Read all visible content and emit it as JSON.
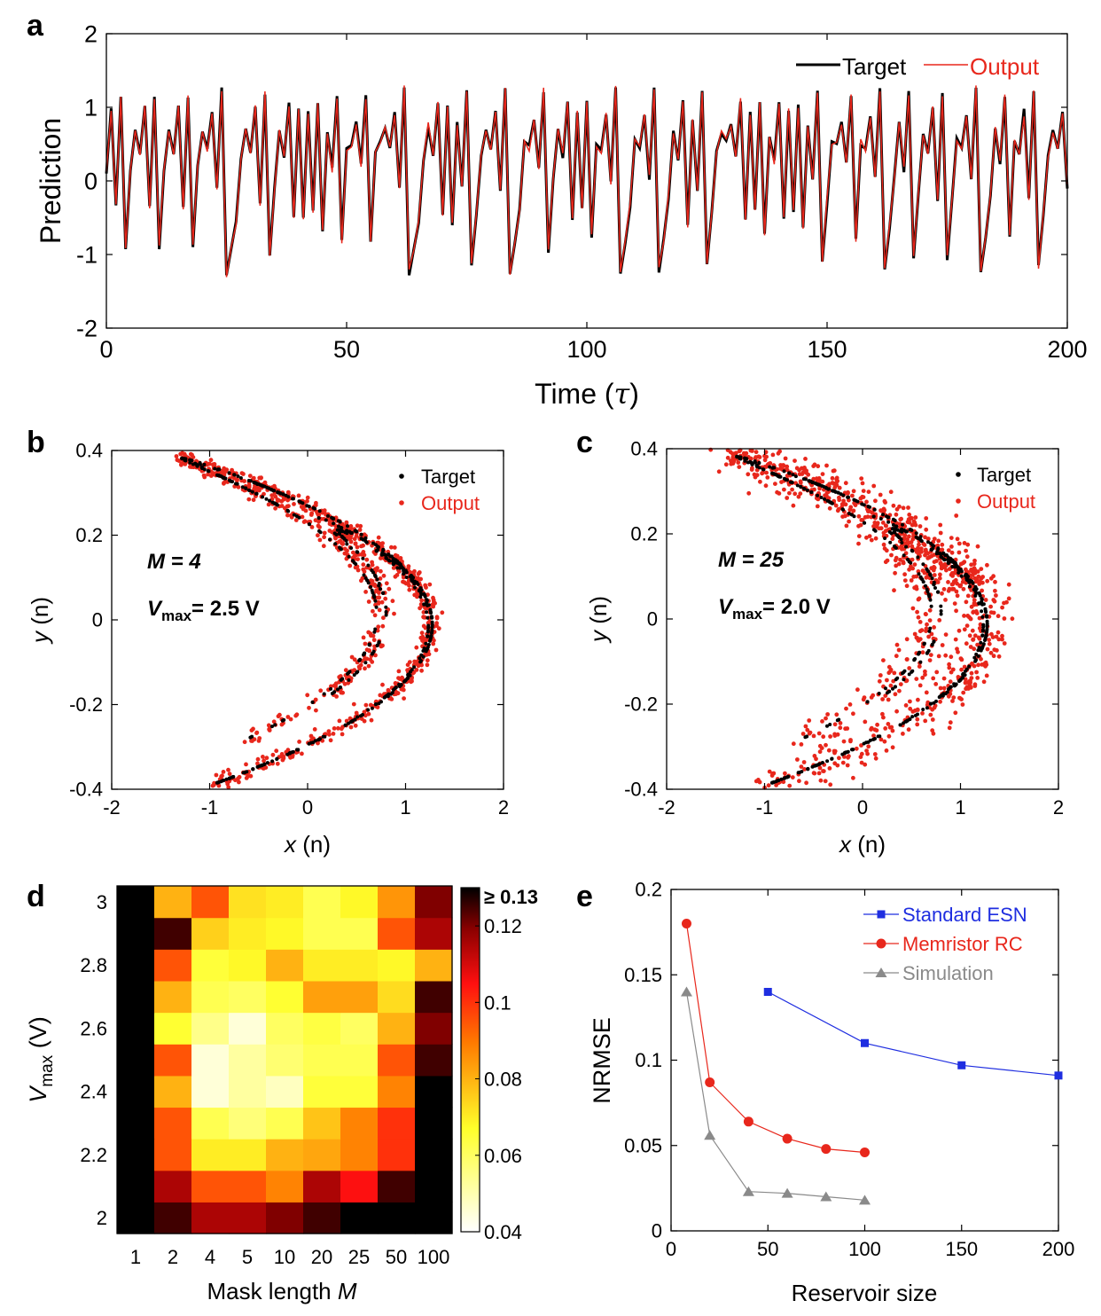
{
  "chart_data": [
    {
      "panel": "a",
      "type": "line",
      "xlabel": "Time (τ)",
      "ylabel": "Prediction",
      "xlim": [
        0,
        200
      ],
      "ylim": [
        -2,
        2
      ],
      "xticks": [
        0,
        50,
        100,
        150,
        200
      ],
      "yticks": [
        -2,
        -1,
        0,
        1,
        2
      ],
      "grid": false,
      "legend": "top-right",
      "series": [
        {
          "name": "Target",
          "color": "#000000"
        },
        {
          "name": "Output",
          "color": "#e8271c"
        }
      ],
      "map": {
        "a": 1.4,
        "b": 0.3,
        "x0": 0.1,
        "y0": 0.0,
        "scale": 0.985
      },
      "x": [
        0,
        200
      ]
    },
    {
      "panel": "b",
      "type": "scatter",
      "xlabel": "x (n)",
      "ylabel": "y (n)",
      "xlim": [
        -2,
        2
      ],
      "ylim": [
        -0.4,
        0.4
      ],
      "xticks": [
        -2,
        -1,
        0,
        1,
        2
      ],
      "yticks": [
        -0.4,
        -0.2,
        0,
        0.2,
        0.4
      ],
      "legend": "top-right",
      "annotation": {
        "M": "M = 4",
        "Vmax": "= 2.5 V"
      },
      "series": [
        {
          "name": "Target",
          "color": "#000000"
        },
        {
          "name": "Output",
          "color": "#e8271c"
        }
      ],
      "noise": 0.03
    },
    {
      "panel": "c",
      "type": "scatter",
      "xlabel": "x (n)",
      "ylabel": "y (n)",
      "xlim": [
        -2,
        2
      ],
      "ylim": [
        -0.4,
        0.4
      ],
      "xticks": [
        -2,
        -1,
        0,
        1,
        2
      ],
      "yticks": [
        -0.4,
        -0.2,
        0,
        0.2,
        0.4
      ],
      "legend": "top-right",
      "annotation": {
        "M": "M = 25",
        "Vmax": "= 2.0 V"
      },
      "series": [
        {
          "name": "Target",
          "color": "#000000"
        },
        {
          "name": "Output",
          "color": "#e8271c"
        }
      ],
      "noise": 0.09
    },
    {
      "panel": "d",
      "type": "heatmap",
      "xlabel": "Mask length M",
      "ylabel": "Vmax (V)",
      "x_categories": [
        "1",
        "2",
        "4",
        "5",
        "10",
        "20",
        "25",
        "50",
        "100"
      ],
      "y_categories": [
        2.0,
        2.1,
        2.2,
        2.3,
        2.4,
        2.5,
        2.6,
        2.7,
        2.8,
        2.9,
        3.0
      ],
      "yticks": [
        2,
        2.2,
        2.4,
        2.6,
        2.8,
        3
      ],
      "colorbar": {
        "min": 0.04,
        "max": 0.13,
        "ticks": [
          "0.04",
          "0.06",
          "0.08",
          "0.1",
          "0.12",
          "≥ 0.13"
        ]
      },
      "values": [
        [
          0.13,
          0.125,
          0.115,
          0.115,
          0.12,
          0.125,
          0.13,
          0.13,
          0.13
        ],
        [
          0.13,
          0.115,
          0.095,
          0.095,
          0.088,
          0.115,
          0.105,
          0.125,
          0.13
        ],
        [
          0.13,
          0.095,
          0.07,
          0.07,
          0.08,
          0.082,
          0.088,
          0.1,
          0.13
        ],
        [
          0.13,
          0.095,
          0.062,
          0.057,
          0.062,
          0.077,
          0.088,
          0.1,
          0.13
        ],
        [
          0.13,
          0.08,
          0.045,
          0.052,
          0.048,
          0.065,
          0.065,
          0.088,
          0.13
        ],
        [
          0.13,
          0.095,
          0.045,
          0.052,
          0.058,
          0.062,
          0.062,
          0.095,
          0.125
        ],
        [
          0.13,
          0.066,
          0.055,
          0.045,
          0.06,
          0.064,
          0.06,
          0.08,
          0.12
        ],
        [
          0.13,
          0.08,
          0.062,
          0.06,
          0.066,
          0.083,
          0.083,
          0.073,
          0.125
        ],
        [
          0.13,
          0.095,
          0.065,
          0.068,
          0.08,
          0.07,
          0.07,
          0.068,
          0.08
        ],
        [
          0.13,
          0.125,
          0.075,
          0.07,
          0.068,
          0.062,
          0.062,
          0.095,
          0.115
        ],
        [
          0.13,
          0.08,
          0.095,
          0.072,
          0.07,
          0.062,
          0.068,
          0.085,
          0.12
        ]
      ]
    },
    {
      "panel": "e",
      "type": "line",
      "xlabel": "Reservoir size",
      "ylabel": "NRMSE",
      "xlim": [
        0,
        200
      ],
      "ylim": [
        0,
        0.2
      ],
      "xticks": [
        0,
        50,
        100,
        150,
        200
      ],
      "yticks": [
        0,
        0.05,
        0.1,
        0.15,
        0.2
      ],
      "legend": "top-right",
      "series": [
        {
          "name": "Standard ESN",
          "color": "#1f2ee0",
          "marker": "square",
          "x": [
            50,
            100,
            150,
            200
          ],
          "y": [
            0.14,
            0.11,
            0.097,
            0.091
          ]
        },
        {
          "name": "Memristor RC",
          "color": "#e8271c",
          "marker": "circle",
          "x": [
            8,
            20,
            40,
            60,
            80,
            100
          ],
          "y": [
            0.18,
            0.087,
            0.064,
            0.054,
            0.048,
            0.046
          ]
        },
        {
          "name": "Simulation",
          "color": "#8a8a8a",
          "marker": "triangle",
          "x": [
            8,
            20,
            40,
            60,
            80,
            100
          ],
          "y": [
            0.14,
            0.056,
            0.023,
            0.022,
            0.02,
            0.018
          ]
        }
      ]
    }
  ],
  "panel_letters": [
    "a",
    "b",
    "c",
    "d",
    "e"
  ]
}
